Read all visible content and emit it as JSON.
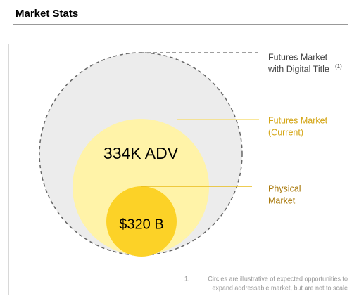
{
  "header": {
    "title": "Market Stats"
  },
  "circles": {
    "outer": {
      "label_lines": [
        "Futures Market",
        "with Digital Title"
      ],
      "note_ref": "(1)"
    },
    "middle": {
      "label_lines": [
        "Futures Market",
        "(Current)"
      ],
      "value": "334K ADV"
    },
    "inner": {
      "label_lines": [
        "Physical",
        "Market"
      ],
      "value": "$320 B"
    }
  },
  "footnote": {
    "number": "1.",
    "lines": [
      "Circles are illustrative of expected opportunities to",
      "expand addressable market, but are not to scale"
    ]
  }
}
